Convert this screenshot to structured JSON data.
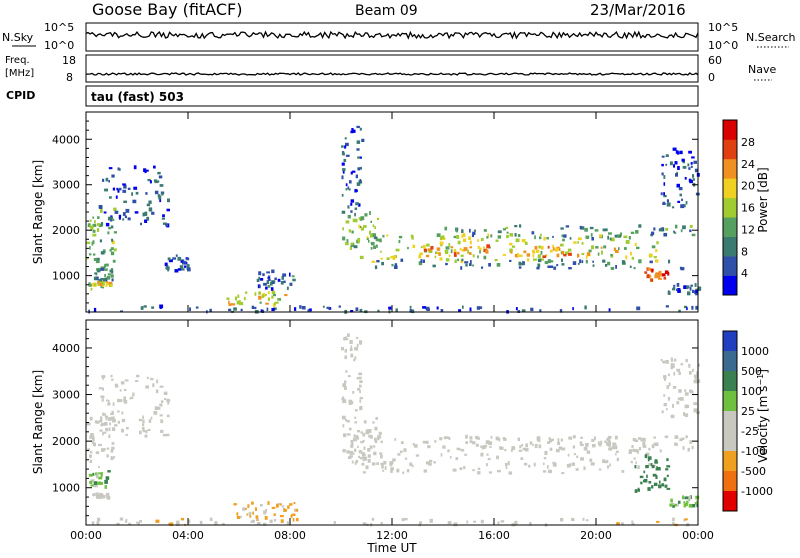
{
  "header": {
    "station": "Goose Bay (fitACF)",
    "beam": "Beam 09",
    "date": "23/Mar/2016"
  },
  "top_panel": {
    "left_label": "N.Sky",
    "left_ticks": [
      "10^5",
      "10^0"
    ],
    "right_label": "N.Search",
    "right_ticks": [
      "10^5",
      "10^0"
    ]
  },
  "freq_panel": {
    "left_label_1": "Freq.",
    "left_label_2": "[MHz]",
    "left_ticks": [
      "18",
      "8"
    ],
    "right_label": "Nave",
    "right_ticks": [
      "60",
      "0"
    ]
  },
  "cpid": {
    "label": "CPID",
    "program": "tau (fast) 503"
  },
  "colors": {
    "power_scale": [
      "#0000ee",
      "#2f4fa8",
      "#3a7a70",
      "#55a060",
      "#a0cc30",
      "#f0d020",
      "#f09020",
      "#e04010",
      "#d80000"
    ],
    "velocity_scale": [
      "#2040c0",
      "#3a6a90",
      "#3a8050",
      "#70c040",
      "#c8c8c0",
      "#c8c8c0",
      "#f0a020",
      "#f07010",
      "#e00000"
    ],
    "ground_scatter": "#c8c8c0"
  },
  "chart_data": [
    {
      "type": "heatmap",
      "name": "power",
      "ylabel": "Slant Range [km]",
      "ylim": [
        200,
        4600
      ],
      "yticks": [
        "1000",
        "2000",
        "3000",
        "4000"
      ],
      "xlim_hours": [
        0,
        24
      ],
      "colorbar": {
        "label": "Power [dB]",
        "range": [
          0,
          32
        ],
        "ticks": [
          "4",
          "8",
          "12",
          "16",
          "20",
          "24",
          "28"
        ]
      },
      "regions": [
        {
          "t0": 0.0,
          "t1": 1.1,
          "r0": 700,
          "r1": 2600,
          "value": 14
        },
        {
          "t0": 0.2,
          "t1": 1.0,
          "r0": 780,
          "r1": 860,
          "value": 21
        },
        {
          "t0": 0.3,
          "t1": 1.0,
          "r0": 900,
          "r1": 1200,
          "value": 10
        },
        {
          "t0": 0.5,
          "t1": 3.2,
          "r0": 2100,
          "r1": 3400,
          "value": 6
        },
        {
          "t0": 3.0,
          "t1": 4.0,
          "r0": 1100,
          "r1": 1450,
          "value": 6
        },
        {
          "t0": 5.5,
          "t1": 7.8,
          "r0": 350,
          "r1": 650,
          "value": 18
        },
        {
          "t0": 6.5,
          "t1": 8.2,
          "r0": 700,
          "r1": 1100,
          "value": 7
        },
        {
          "t0": 10.0,
          "t1": 11.5,
          "r0": 1600,
          "r1": 2400,
          "value": 14
        },
        {
          "t0": 10.0,
          "t1": 10.8,
          "r0": 2400,
          "r1": 4300,
          "value": 6
        },
        {
          "t0": 10.5,
          "t1": 22.5,
          "r0": 1300,
          "r1": 1900,
          "value": 16
        },
        {
          "t0": 13.0,
          "t1": 21.0,
          "r0": 1400,
          "r1": 1650,
          "value": 22
        },
        {
          "t0": 11.0,
          "t1": 23.5,
          "r0": 1150,
          "r1": 1350,
          "value": 8
        },
        {
          "t0": 14.0,
          "t1": 23.8,
          "r0": 1800,
          "r1": 2100,
          "value": 10
        },
        {
          "t0": 21.8,
          "t1": 22.8,
          "r0": 900,
          "r1": 1150,
          "value": 26
        },
        {
          "t0": 22.8,
          "t1": 24.0,
          "r0": 600,
          "r1": 800,
          "value": 6
        },
        {
          "t0": 22.5,
          "t1": 24.0,
          "r0": 2500,
          "r1": 3800,
          "value": 6
        },
        {
          "t0": 0.0,
          "t1": 24.0,
          "r0": 200,
          "r1": 330,
          "value": 6
        }
      ]
    },
    {
      "type": "heatmap",
      "name": "velocity",
      "ylabel": "Slant Range [km]",
      "xlabel": "Time UT",
      "ylim": [
        200,
        4600
      ],
      "yticks": [
        "1000",
        "2000",
        "3000",
        "4000"
      ],
      "xticks": [
        "00:00",
        "04:00",
        "08:00",
        "12:00",
        "16:00",
        "20:00",
        "00:00"
      ],
      "xlim_hours": [
        0,
        24
      ],
      "colorbar": {
        "label": "Velocity [m s^-1]",
        "ticks": [
          "1000",
          "500",
          "100",
          "25",
          "-25",
          "-100",
          "-500",
          "-1000"
        ]
      },
      "regions": [
        {
          "t0": 0.0,
          "t1": 1.1,
          "r0": 1400,
          "r1": 2600,
          "value": "ground"
        },
        {
          "t0": 0.1,
          "t1": 0.9,
          "r0": 1000,
          "r1": 1400,
          "value": 60
        },
        {
          "t0": 0.2,
          "t1": 0.9,
          "r0": 780,
          "r1": 860,
          "value": "ground"
        },
        {
          "t0": 0.5,
          "t1": 3.2,
          "r0": 2100,
          "r1": 3400,
          "value": "ground"
        },
        {
          "t0": 5.5,
          "t1": 8.2,
          "r0": 300,
          "r1": 700,
          "value": -100
        },
        {
          "t0": 10.0,
          "t1": 11.5,
          "r0": 1500,
          "r1": 2500,
          "value": "ground"
        },
        {
          "t0": 10.0,
          "t1": 10.8,
          "r0": 2400,
          "r1": 4300,
          "value": "ground"
        },
        {
          "t0": 10.5,
          "t1": 22.5,
          "r0": 1300,
          "r1": 2100,
          "value": "ground"
        },
        {
          "t0": 14.0,
          "t1": 23.8,
          "r0": 1800,
          "r1": 2100,
          "value": "ground"
        },
        {
          "t0": 21.5,
          "t1": 22.8,
          "r0": 900,
          "r1": 1700,
          "value": 200
        },
        {
          "t0": 22.8,
          "t1": 24.0,
          "r0": 600,
          "r1": 800,
          "value": 60
        },
        {
          "t0": 22.5,
          "t1": 24.0,
          "r0": 2500,
          "r1": 3800,
          "value": "ground"
        },
        {
          "t0": 0.0,
          "t1": 24.0,
          "r0": 200,
          "r1": 330,
          "value": -60
        }
      ]
    }
  ]
}
